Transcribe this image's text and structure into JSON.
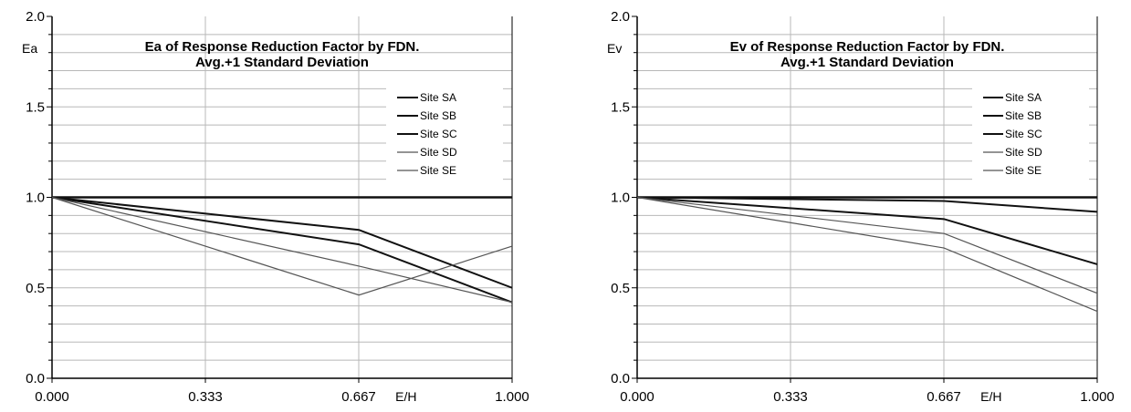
{
  "chart_data": [
    {
      "type": "line",
      "title": [
        "Ea of Response  Reduction  Factor  by  FDN.",
        "Avg.+1  Standard  Deviation"
      ],
      "ylabel": "Ea",
      "xlabel": "E/H",
      "xlim": [
        0,
        1
      ],
      "ylim": [
        0,
        2
      ],
      "x_ticks": [
        "0.000",
        "0.333",
        "0.667",
        "1.000"
      ],
      "y_ticks": [
        "0.0",
        "0.5",
        "1.0",
        "1.5",
        "2.0"
      ],
      "grid": true,
      "legend_position": "top-right",
      "x": [
        0,
        0.667,
        1.0
      ],
      "series": [
        {
          "name": "Site SA",
          "values": [
            1.0,
            1.0,
            1.0
          ],
          "weight": "bold"
        },
        {
          "name": "Site SB",
          "values": [
            1.0,
            0.82,
            0.5
          ],
          "weight": "bold"
        },
        {
          "name": "Site SC",
          "values": [
            1.0,
            0.74,
            0.42
          ],
          "weight": "bold"
        },
        {
          "name": "Site SD",
          "values": [
            1.0,
            0.62,
            0.42
          ],
          "weight": "thin"
        },
        {
          "name": "Site SE",
          "values": [
            1.0,
            0.46,
            0.73
          ],
          "weight": "thin"
        }
      ]
    },
    {
      "type": "line",
      "title": [
        "Ev of Response  Reduction  Factor  by  FDN.",
        "Avg.+1  Standard  Deviation"
      ],
      "ylabel": "Ev",
      "xlabel": "E/H",
      "xlim": [
        0,
        1
      ],
      "ylim": [
        0,
        2
      ],
      "x_ticks": [
        "0.000",
        "0.333",
        "0.667",
        "1.000"
      ],
      "y_ticks": [
        "0.0",
        "0.5",
        "1.0",
        "1.5",
        "2.0"
      ],
      "grid": true,
      "legend_position": "top-right",
      "x": [
        0,
        0.667,
        1.0
      ],
      "series": [
        {
          "name": "Site SA",
          "values": [
            1.0,
            1.0,
            1.0
          ],
          "weight": "bold"
        },
        {
          "name": "Site SB",
          "values": [
            1.0,
            0.98,
            0.92
          ],
          "weight": "bold"
        },
        {
          "name": "Site SC",
          "values": [
            1.0,
            0.88,
            0.63
          ],
          "weight": "bold"
        },
        {
          "name": "Site SD",
          "values": [
            1.0,
            0.8,
            0.47
          ],
          "weight": "thin"
        },
        {
          "name": "Site SE",
          "values": [
            1.0,
            0.72,
            0.37
          ],
          "weight": "thin"
        }
      ]
    }
  ]
}
